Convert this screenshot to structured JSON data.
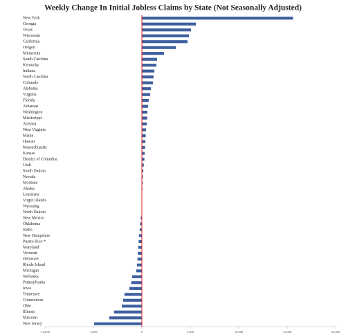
{
  "chart_data": {
    "type": "barh",
    "title": "Weekly Change In Initial Jobless Claims by State (Not Seasonally Adjusted)",
    "categories": [
      "New York",
      "Georgia",
      "Texas",
      "Wisconsin",
      "California",
      "Oregon",
      "Minnesota",
      "South Carolina",
      "Kentucky",
      "Indiana",
      "North Carolina",
      "Colorado",
      "Alabama",
      "Virginia",
      "Florida",
      "Arkansas",
      "Washington",
      "Mississippi",
      "Arizona",
      "West Virginia",
      "Maine",
      "Hawaii",
      "Massachusetts",
      "Kansas",
      "District of Columbia",
      "Utah",
      "South Dakota",
      "Nevada",
      "Montana",
      "Alaska",
      "Louisiana",
      "Virgin Islands",
      "Wyoming",
      "North Dakota",
      "New Mexico",
      "Oklahoma",
      "Idaho",
      "New Hampshire",
      "Puerto Rico *",
      "Maryland",
      "Vermont",
      "Delaware",
      "Rhode Island",
      "Michigan",
      "Nebraska",
      "Pennsylvania",
      "Iowa",
      "Tennessee",
      "Connecticut",
      "Ohio",
      "Illinois",
      "Missouri",
      "New Jersey"
    ],
    "values": [
      15600,
      5570,
      5070,
      4860,
      4710,
      3500,
      2290,
      1570,
      1500,
      1290,
      1210,
      1140,
      930,
      860,
      710,
      640,
      570,
      550,
      500,
      430,
      400,
      360,
      330,
      290,
      260,
      200,
      150,
      100,
      80,
      60,
      30,
      10,
      -10,
      -30,
      -120,
      -180,
      -220,
      -300,
      -330,
      -380,
      -420,
      -450,
      -500,
      -580,
      -1000,
      -1100,
      -1290,
      -1790,
      -1930,
      -2070,
      -2860,
      -3360,
      -4930
    ],
    "color": "#3d5f9e",
    "zero_line_color": "#e02020",
    "xlim": [
      -10000,
      20000
    ],
    "xticks": [
      {
        "value": -10000,
        "label": "-10,000"
      },
      {
        "value": -5000,
        "label": "-5,000"
      },
      0,
      {
        "value": 5000,
        "label": "5,000"
      },
      {
        "value": 10000,
        "label": "10,000"
      },
      {
        "value": 15000,
        "label": "15,000"
      },
      {
        "value": 20000,
        "label": "20,000"
      }
    ]
  }
}
